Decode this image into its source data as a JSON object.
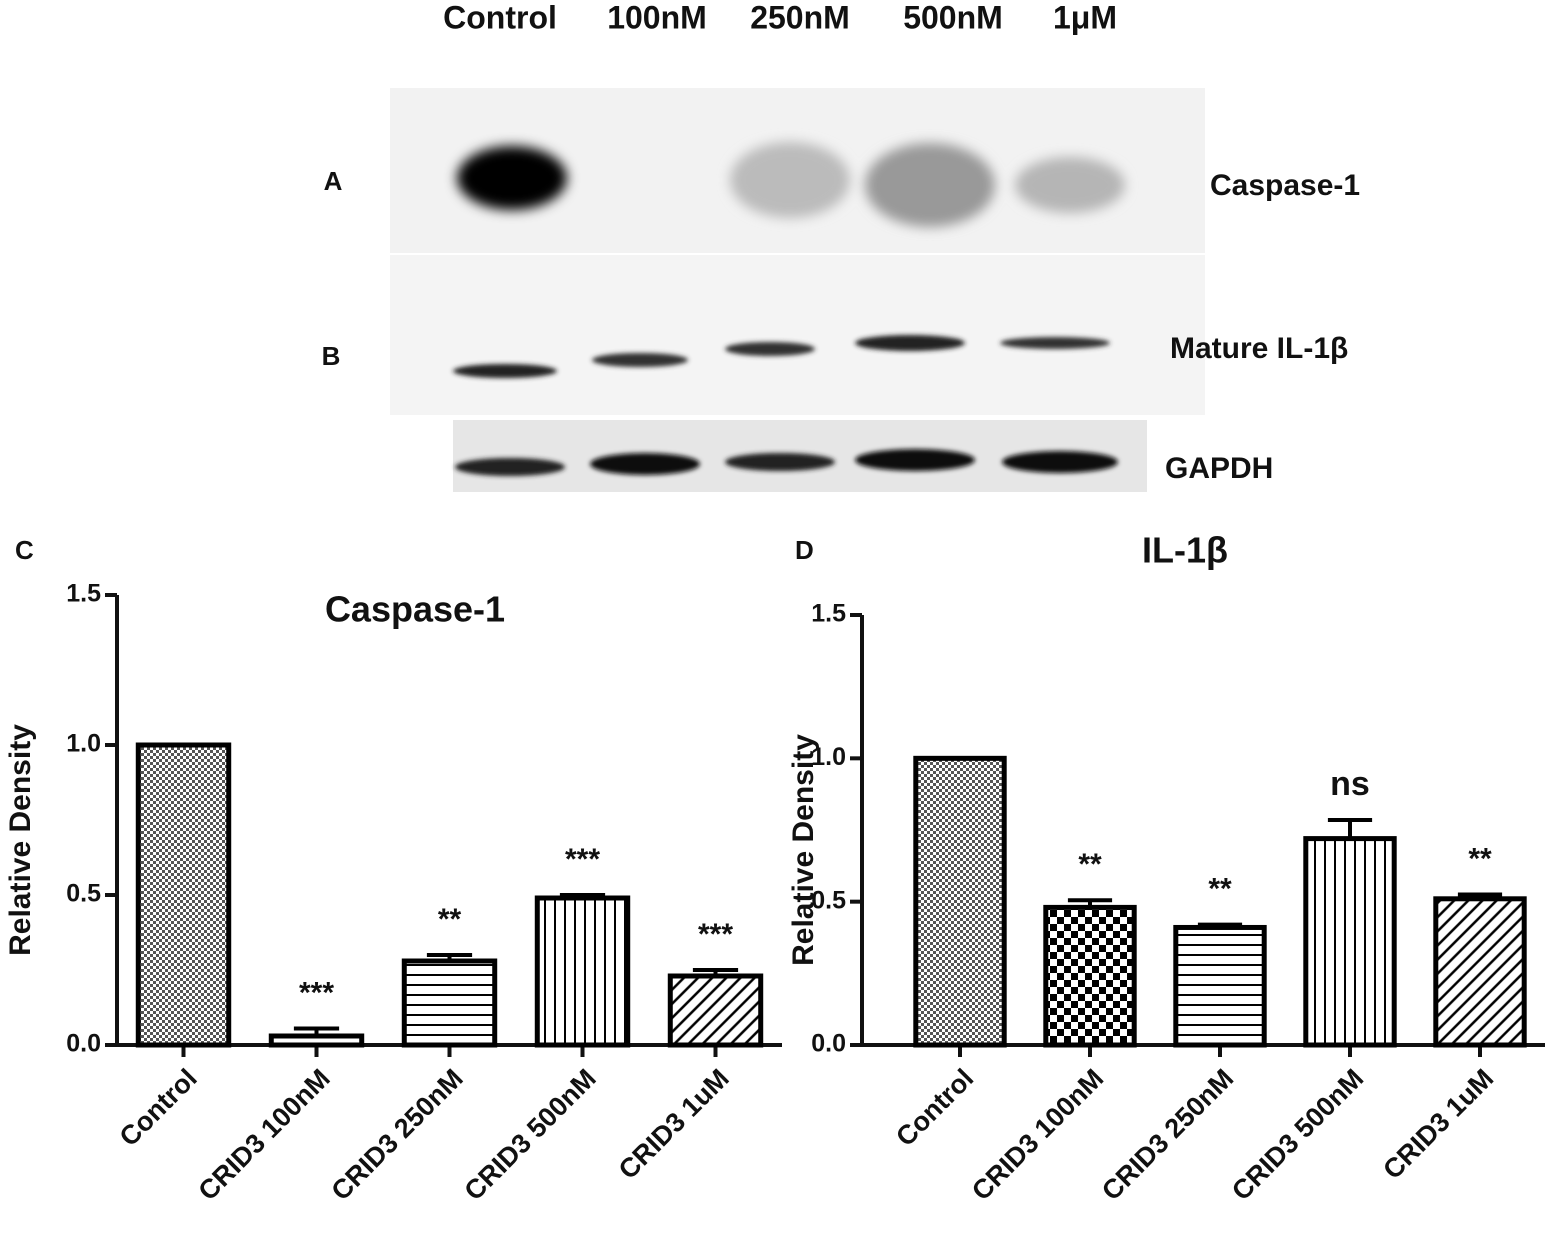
{
  "blot": {
    "lanes": [
      "Control",
      "100nM",
      "250nM",
      "500nM",
      "1μM"
    ],
    "rows": [
      {
        "panel": "A",
        "label": "Caspase-1"
      },
      {
        "panel": "B",
        "label": "Mature IL-1β"
      },
      {
        "label": "GAPDH"
      }
    ]
  },
  "chart_data": [
    {
      "type": "bar",
      "panel": "C",
      "title": "Caspase-1",
      "ylabel": "Relative Density",
      "categories": [
        "Control",
        "CRID3 100nM",
        "CRID3 250nM",
        "CRID3 500nM",
        "CRID3 1uM"
      ],
      "values": [
        1.0,
        0.03,
        0.28,
        0.49,
        0.23
      ],
      "errors": [
        0,
        0.025,
        0.02,
        0.01,
        0.02
      ],
      "annotations": [
        null,
        "***",
        "**",
        "***",
        "***"
      ],
      "color": "#000000",
      "ylim": [
        0,
        1.5
      ],
      "yticks": [
        {
          "value": 0,
          "label": "0.0"
        },
        {
          "value": 0.5,
          "label": "0.5"
        },
        {
          "value": 1,
          "label": "1.0"
        },
        {
          "value": 1.5,
          "label": "1.5"
        }
      ]
    },
    {
      "type": "bar",
      "panel": "D",
      "title": "IL-1β",
      "ylabel": "Relative Density",
      "categories": [
        "Control",
        "CRID3 100nM",
        "CRID3 250nM",
        "CRID3 500nM",
        "CRID3 1uM"
      ],
      "values": [
        1.0,
        0.48,
        0.41,
        0.72,
        0.51
      ],
      "errors": [
        0,
        0.025,
        0.01,
        0.065,
        0.015
      ],
      "annotations": [
        null,
        "**",
        "**",
        "ns",
        "**"
      ],
      "color": "#000000",
      "ylim": [
        0,
        1.5
      ],
      "yticks": [
        {
          "value": 0,
          "label": "0.0"
        },
        {
          "value": 0.5,
          "label": "0.5"
        },
        {
          "value": 1,
          "label": "1.0"
        },
        {
          "value": 1.5,
          "label": "1.5"
        }
      ]
    }
  ]
}
